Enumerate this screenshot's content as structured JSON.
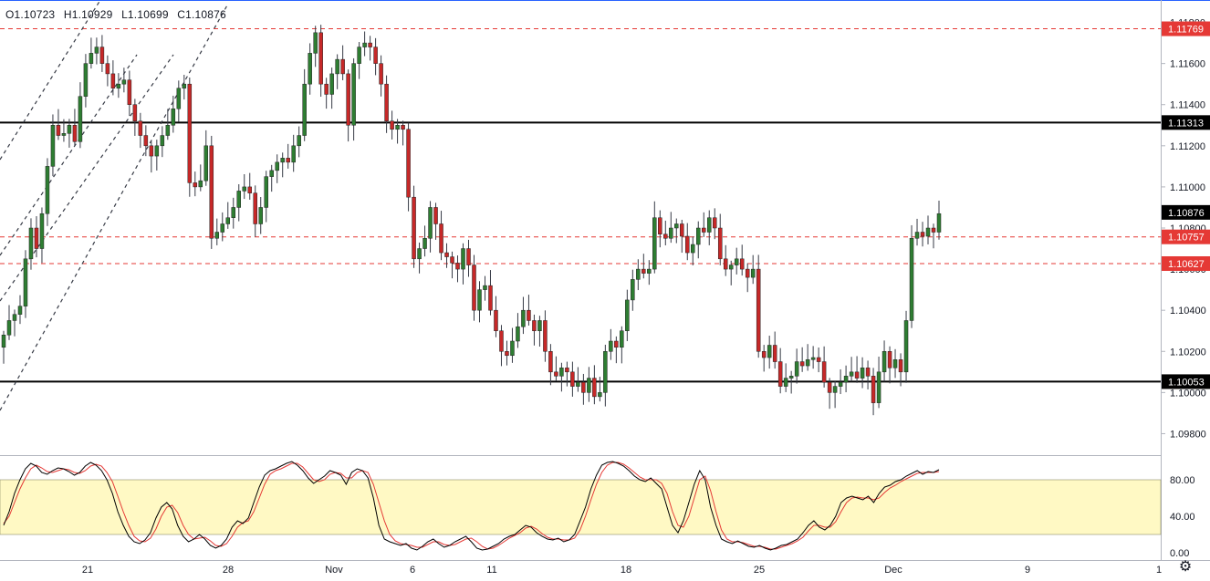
{
  "ohlc": {
    "open": "O1.10723",
    "high": "H1.10929",
    "low": "L1.10699",
    "close": "C1.10876"
  },
  "colors": {
    "up": "#26a69a",
    "down": "#ef5350",
    "up_fill": "#2e7d32",
    "down_fill": "#c62828",
    "red_line": "#e53935",
    "black_line": "#000000",
    "stoch_band": "#fff9c4",
    "k_line": "#000000",
    "d_line": "#e53935"
  },
  "icons": {
    "settings": "gear-icon"
  },
  "chart_data": [
    {
      "type": "candlestick",
      "title": "",
      "price_axis": {
        "ylim": [
          1.097,
          1.119
        ],
        "ticks": [
          "1.09800",
          "1.10000",
          "1.10200",
          "1.10400",
          "1.10600",
          "1.10800",
          "1.11000",
          "1.11200",
          "1.11400",
          "1.11600",
          "1.11800"
        ]
      },
      "time_axis": {
        "ticks": [
          "21",
          "28",
          "Nov",
          "6",
          "11",
          "18",
          "25",
          "Dec",
          "9",
          "1"
        ]
      },
      "levels": [
        {
          "price": 1.11769,
          "label": "1.11769",
          "style": "dashed-red"
        },
        {
          "price": 1.11313,
          "label": "1.11313",
          "style": "solid-black"
        },
        {
          "price": 1.10876,
          "label": "1.10876",
          "style": "current-price"
        },
        {
          "price": 1.10757,
          "label": "1.10757",
          "style": "dashed-red"
        },
        {
          "price": 1.10627,
          "label": "1.10627",
          "style": "dashed-red"
        },
        {
          "price": 1.10053,
          "label": "1.10053",
          "style": "solid-black"
        }
      ],
      "closes": [
        1.1028,
        1.1035,
        1.1038,
        1.1042,
        1.1065,
        1.108,
        1.107,
        1.1087,
        1.111,
        1.113,
        1.1125,
        1.1126,
        1.113,
        1.1122,
        1.1144,
        1.116,
        1.1165,
        1.1168,
        1.116,
        1.1155,
        1.1148,
        1.115,
        1.1152,
        1.114,
        1.1132,
        1.1125,
        1.112,
        1.1115,
        1.112,
        1.1125,
        1.113,
        1.1138,
        1.1148,
        1.115,
        1.1102,
        1.11,
        1.1103,
        1.112,
        1.1075,
        1.1078,
        1.1082,
        1.1085,
        1.109,
        1.1098,
        1.11,
        1.1097,
        1.1082,
        1.109,
        1.1105,
        1.1108,
        1.1112,
        1.1114,
        1.1112,
        1.112,
        1.1125,
        1.115,
        1.1165,
        1.1175,
        1.115,
        1.1145,
        1.1155,
        1.1162,
        1.1155,
        1.113,
        1.116,
        1.1168,
        1.117,
        1.1168,
        1.116,
        1.115,
        1.1132,
        1.1128,
        1.113,
        1.1128,
        1.1095,
        1.1065,
        1.107,
        1.1075,
        1.109,
        1.1082,
        1.1068,
        1.1066,
        1.1063,
        1.106,
        1.107,
        1.1062,
        1.104,
        1.105,
        1.1052,
        1.104,
        1.103,
        1.102,
        1.1018,
        1.1025,
        1.1032,
        1.104,
        1.1035,
        1.103,
        1.1035,
        1.102,
        1.101,
        1.1008,
        1.1012,
        1.101,
        1.1003,
        1.1005,
        1.1,
        1.1007,
        1.0998,
        1.1,
        1.102,
        1.1025,
        1.1022,
        1.103,
        1.1045,
        1.1055,
        1.106,
        1.1058,
        1.106,
        1.1085,
        1.1077,
        1.1075,
        1.108,
        1.1082,
        1.1076,
        1.1068,
        1.1072,
        1.108,
        1.1078,
        1.1085,
        1.108,
        1.1065,
        1.106,
        1.1062,
        1.1065,
        1.106,
        1.1056,
        1.106,
        1.102,
        1.1017,
        1.1023,
        1.1015,
        1.1003,
        1.1007,
        1.1008,
        1.1015,
        1.1013,
        1.1016,
        1.1017,
        1.1015,
        1.1005,
        1.1,
        1.1003,
        1.1005,
        1.1008,
        1.101,
        1.1007,
        1.1012,
        1.1008,
        1.0995,
        1.101,
        1.102,
        1.1012,
        1.1016,
        1.101,
        1.1035,
        1.1075,
        1.1078,
        1.1076,
        1.108,
        1.1078,
        1.1087
      ],
      "stochastic": {
        "ylim": [
          0,
          100
        ],
        "band": [
          20,
          80
        ],
        "ticks": [
          "80.00",
          "40.00",
          "0.00"
        ],
        "k": [
          30,
          45,
          65,
          80,
          92,
          98,
          95,
          88,
          86,
          90,
          93,
          92,
          89,
          85,
          88,
          95,
          99,
          96,
          90,
          80,
          65,
          45,
          30,
          18,
          12,
          10,
          14,
          22,
          38,
          50,
          55,
          48,
          30,
          18,
          12,
          15,
          20,
          15,
          8,
          5,
          8,
          15,
          28,
          35,
          32,
          38,
          55,
          72,
          85,
          90,
          92,
          95,
          98,
          100,
          96,
          90,
          82,
          76,
          80,
          84,
          90,
          88,
          85,
          75,
          88,
          92,
          90,
          82,
          60,
          30,
          15,
          12,
          10,
          8,
          10,
          5,
          3,
          7,
          12,
          15,
          10,
          6,
          8,
          12,
          15,
          18,
          12,
          5,
          3,
          4,
          7,
          10,
          15,
          18,
          20,
          25,
          30,
          28,
          22,
          18,
          15,
          14,
          16,
          12,
          14,
          20,
          35,
          50,
          70,
          85,
          96,
          99,
          100,
          98,
          95,
          90,
          84,
          80,
          78,
          82,
          76,
          70,
          50,
          30,
          22,
          35,
          55,
          75,
          90,
          80,
          50,
          30,
          15,
          12,
          10,
          13,
          10,
          7,
          6,
          8,
          5,
          3,
          5,
          8,
          9,
          12,
          15,
          22,
          30,
          35,
          28,
          25,
          30,
          40,
          55,
          60,
          62,
          60,
          58,
          62,
          55,
          65,
          72,
          74,
          78,
          80,
          84,
          87,
          90,
          86,
          89,
          88,
          91
        ],
        "d": [
          32,
          40,
          55,
          70,
          82,
          92,
          96,
          93,
          89,
          88,
          90,
          92,
          91,
          88,
          87,
          90,
          95,
          97,
          95,
          88,
          78,
          62,
          45,
          30,
          18,
          13,
          12,
          16,
          26,
          40,
          50,
          52,
          44,
          30,
          20,
          15,
          16,
          17,
          13,
          8,
          7,
          10,
          18,
          28,
          33,
          35,
          45,
          60,
          75,
          86,
          90,
          92,
          95,
          98,
          98,
          94,
          87,
          80,
          78,
          80,
          86,
          88,
          87,
          82,
          82,
          88,
          90,
          88,
          75,
          55,
          35,
          20,
          13,
          10,
          9,
          8,
          6,
          6,
          9,
          12,
          12,
          9,
          8,
          9,
          12,
          15,
          16,
          12,
          7,
          4,
          5,
          8,
          12,
          16,
          19,
          22,
          27,
          29,
          26,
          21,
          17,
          15,
          15,
          14,
          14,
          16,
          25,
          40,
          58,
          75,
          88,
          96,
          99,
          99,
          97,
          93,
          88,
          83,
          80,
          80,
          80,
          76,
          65,
          45,
          30,
          28,
          40,
          60,
          80,
          84,
          68,
          45,
          25,
          15,
          12,
          12,
          11,
          9,
          7,
          7,
          6,
          4,
          4,
          6,
          8,
          10,
          13,
          17,
          24,
          30,
          30,
          28,
          28,
          34,
          45,
          55,
          60,
          61,
          60,
          60,
          58,
          60,
          66,
          71,
          74,
          78,
          81,
          84,
          87,
          88,
          88,
          88,
          89
        ]
      }
    }
  ]
}
